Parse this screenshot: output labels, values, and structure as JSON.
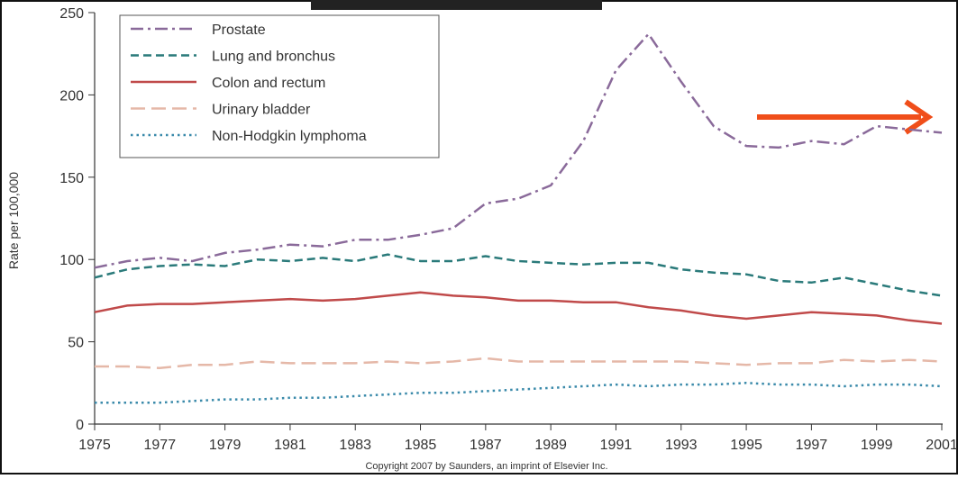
{
  "chart_data": {
    "type": "line",
    "y_label": "Rate per 100,000",
    "copyright": "Copyright 2007 by Saunders, an imprint of Elsevier Inc.",
    "x": [
      1975,
      1976,
      1977,
      1978,
      1979,
      1980,
      1981,
      1982,
      1983,
      1984,
      1985,
      1986,
      1987,
      1988,
      1989,
      1990,
      1991,
      1992,
      1993,
      1994,
      1995,
      1996,
      1997,
      1998,
      1999,
      2000,
      2001
    ],
    "xlim": [
      1975,
      2001
    ],
    "xticks": [
      1975,
      1977,
      1979,
      1981,
      1983,
      1985,
      1987,
      1989,
      1991,
      1993,
      1995,
      1997,
      1999,
      2001
    ],
    "ylim": [
      0,
      250
    ],
    "yticks": [
      0,
      50,
      100,
      150,
      200,
      250
    ],
    "legend": "upper left",
    "series": [
      {
        "name": "Prostate",
        "color": "#8a6a9a",
        "style": "dashdot",
        "values": [
          95,
          99,
          101,
          99,
          104,
          106,
          109,
          108,
          112,
          112,
          115,
          119,
          134,
          137,
          145,
          172,
          215,
          237,
          208,
          181,
          169,
          168,
          172,
          170,
          181,
          179,
          177
        ]
      },
      {
        "name": "Lung and bronchus",
        "color": "#2a7a7a",
        "style": "dashed",
        "values": [
          89,
          94,
          96,
          97,
          96,
          100,
          99,
          101,
          99,
          103,
          99,
          99,
          102,
          99,
          98,
          97,
          98,
          98,
          94,
          92,
          91,
          87,
          86,
          89,
          85,
          81,
          78
        ]
      },
      {
        "name": "Colon and rectum",
        "color": "#c04a4a",
        "style": "solid",
        "values": [
          68,
          72,
          73,
          73,
          74,
          75,
          76,
          75,
          76,
          78,
          80,
          78,
          77,
          75,
          75,
          74,
          74,
          71,
          69,
          66,
          64,
          66,
          68,
          67,
          66,
          63,
          61
        ]
      },
      {
        "name": "Urinary bladder",
        "color": "#e5b8a8",
        "style": "longdash",
        "values": [
          35,
          35,
          34,
          36,
          36,
          38,
          37,
          37,
          37,
          38,
          37,
          38,
          40,
          38,
          38,
          38,
          38,
          38,
          38,
          37,
          36,
          37,
          37,
          39,
          38,
          39,
          38
        ]
      },
      {
        "name": "Non-Hodgkin lymphoma",
        "color": "#3a8aaa",
        "style": "dotted",
        "values": [
          13,
          13,
          13,
          14,
          15,
          15,
          16,
          16,
          17,
          18,
          19,
          19,
          20,
          21,
          22,
          23,
          24,
          23,
          24,
          24,
          25,
          24,
          24,
          23,
          24,
          24,
          23
        ]
      }
    ]
  }
}
